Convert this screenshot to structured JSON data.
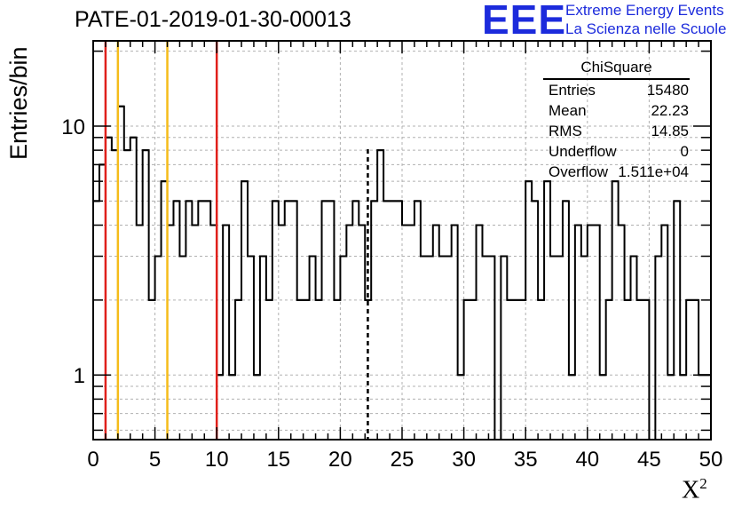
{
  "title": "PATE-01-2019-01-30-00013",
  "logo": {
    "mark": "EEE",
    "line1": "Extreme Energy Events",
    "line2": "La Scienza nelle Scuole"
  },
  "colors": {
    "hist": "#000000",
    "red_line": "#e0201b",
    "yellow_line": "#f5bc1a",
    "mean_line": "#000000",
    "grid": "#b0b0b0",
    "logo": "#1c2bdc"
  },
  "stats": {
    "title": "ChiSquare",
    "rows": [
      {
        "key": "Entries",
        "value": "15480"
      },
      {
        "key": "Mean",
        "value": "22.23"
      },
      {
        "key": "RMS",
        "value": "14.85"
      },
      {
        "key": "Underflow",
        "value": "0"
      },
      {
        "key": "Overflow",
        "value": "1.511e+04"
      }
    ]
  },
  "chart_data": {
    "type": "histogram",
    "title": "PATE-01-2019-01-30-00013",
    "xlabel": "X²",
    "ylabel": "Entries/bin",
    "xlim": [
      0,
      50
    ],
    "ylim_log": [
      0.55,
      22
    ],
    "yscale": "log",
    "grid": true,
    "bin_width": 0.5,
    "x_ticks": [
      0,
      5,
      10,
      15,
      20,
      25,
      30,
      35,
      40,
      45,
      50
    ],
    "x_tick_labels": [
      "0",
      "5",
      "10",
      "15",
      "20",
      "25",
      "30",
      "35",
      "40",
      "45",
      "50"
    ],
    "y_ticks": [
      1,
      10
    ],
    "y_tick_labels": [
      "1",
      "10"
    ],
    "counts": [
      5,
      7,
      9,
      8,
      12,
      8,
      9,
      4,
      8,
      2,
      3,
      6,
      4,
      5,
      3,
      5,
      4,
      5,
      5,
      4,
      1,
      4,
      1,
      2,
      6,
      3,
      1,
      3,
      2,
      5,
      4,
      5,
      5,
      2,
      2,
      3,
      2,
      5,
      5,
      2,
      3,
      4,
      5,
      4,
      2,
      5,
      8,
      5,
      5,
      5,
      4,
      4,
      5,
      3,
      3,
      4,
      3,
      3,
      4,
      1,
      2,
      2,
      4,
      3,
      3,
      0,
      3,
      2,
      2,
      2,
      6,
      5,
      2,
      6,
      3,
      3,
      5,
      1,
      4,
      3,
      4,
      4,
      1,
      2,
      6,
      4,
      2,
      3,
      2,
      2,
      0,
      3,
      4,
      1,
      5,
      1,
      2,
      2,
      1,
      1
    ],
    "vertical_lines": [
      {
        "x": 1,
        "style": "red"
      },
      {
        "x": 2,
        "style": "yellow"
      },
      {
        "x": 6,
        "style": "yellow"
      },
      {
        "x": 10,
        "style": "red"
      },
      {
        "x": 22.23,
        "style": "mean-dashed"
      }
    ]
  }
}
